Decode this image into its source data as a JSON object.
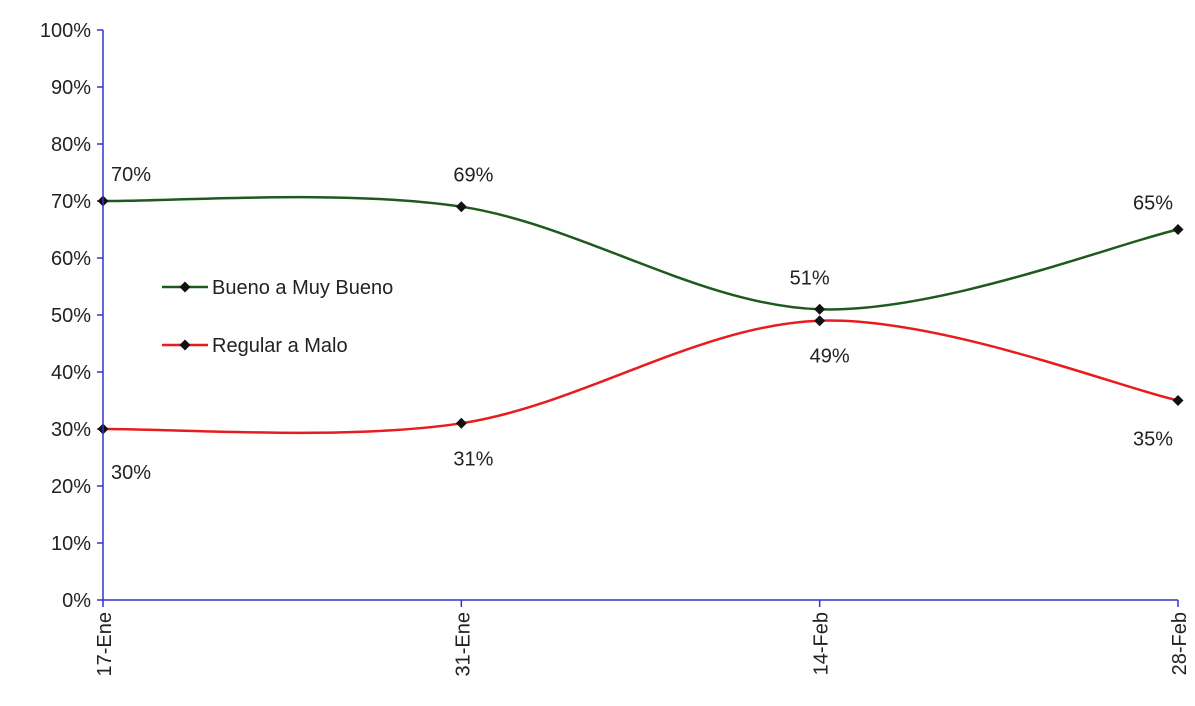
{
  "chart_data": {
    "type": "line",
    "title": "",
    "xlabel": "",
    "ylabel": "",
    "categories": [
      "17-Ene",
      "31-Ene",
      "14-Feb",
      "28-Feb"
    ],
    "ylim": [
      0,
      100
    ],
    "yticks": [
      "0%",
      "10%",
      "20%",
      "30%",
      "40%",
      "50%",
      "60%",
      "70%",
      "80%",
      "90%",
      "100%"
    ],
    "grid": false,
    "smooth": true,
    "legend_position": "center-left",
    "series": [
      {
        "name": "Bueno a Muy Bueno",
        "values": [
          70,
          69,
          51,
          65
        ],
        "labels": [
          "70%",
          "69%",
          "51%",
          "65%"
        ],
        "color": "#1e5a1e"
      },
      {
        "name": "Regular a Malo",
        "values": [
          30,
          31,
          49,
          35
        ],
        "labels": [
          "30%",
          "31%",
          "49%",
          "35%"
        ],
        "color": "#e81c1c"
      }
    ],
    "axis_color": "#3333cc",
    "marker_color": "#111111"
  }
}
